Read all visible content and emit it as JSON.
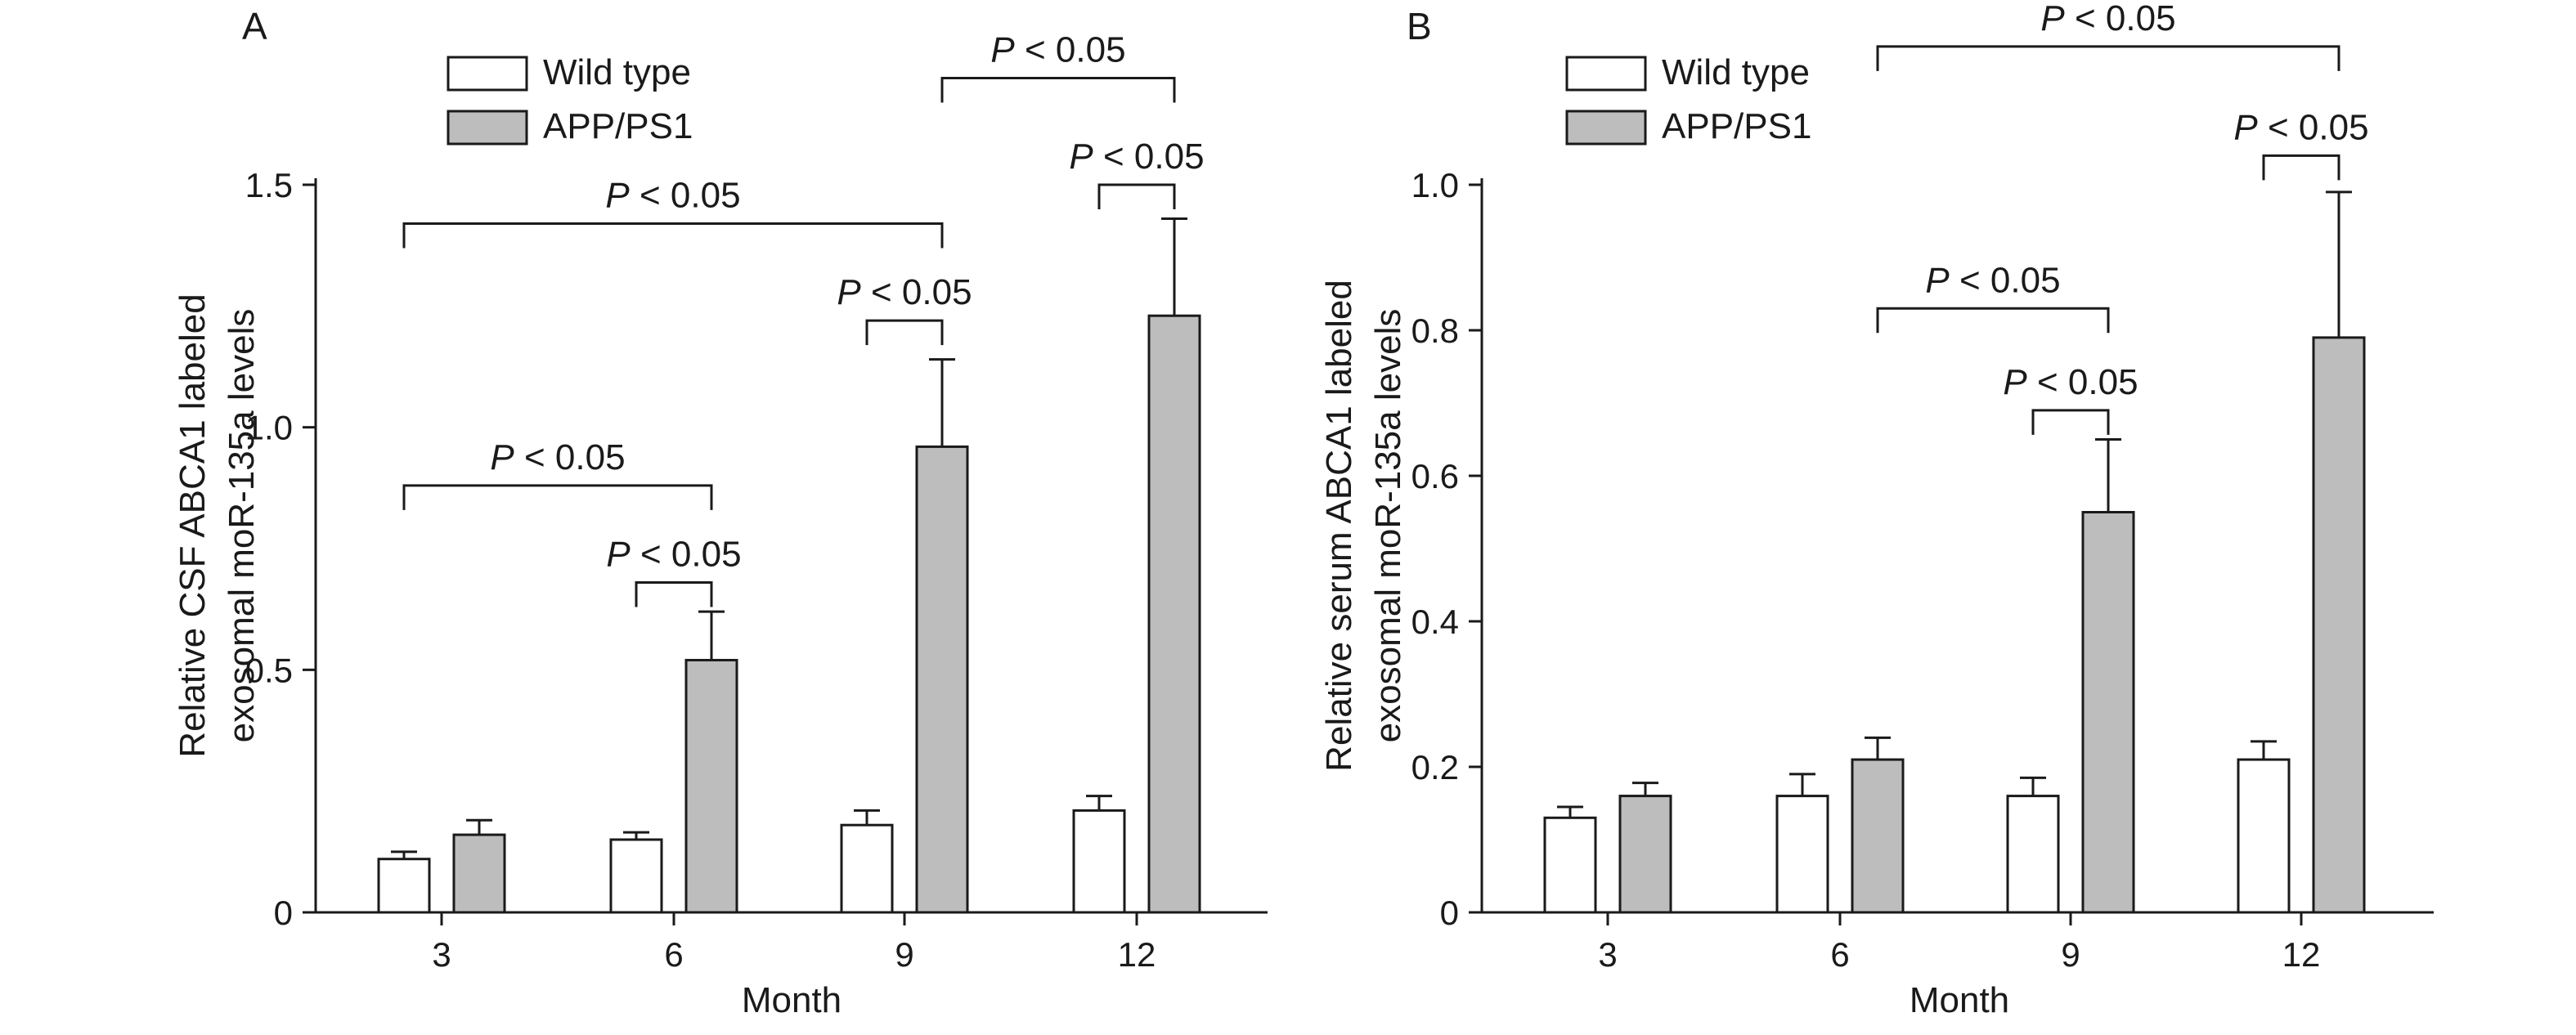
{
  "chart_data": [
    {
      "panel_label": "A",
      "type": "bar",
      "categories": [
        "3",
        "6",
        "9",
        "12"
      ],
      "xlabel": "Month",
      "ylabel_lines": [
        "Relative CSF ABCA1 labeled",
        "exosomal moR-135a levels"
      ],
      "ylim": [
        0,
        1.5
      ],
      "yticks": [
        0,
        0.5,
        1.0,
        1.5
      ],
      "ytick_labels": [
        "0",
        "0.5",
        "1.0",
        "1.5"
      ],
      "legend": {
        "placement": "top-left",
        "entries": [
          "Wild type",
          "APP/PS1"
        ]
      },
      "series": [
        {
          "name": "Wild type",
          "values": [
            0.11,
            0.15,
            0.18,
            0.21
          ],
          "errors": [
            0.015,
            0.015,
            0.03,
            0.03
          ],
          "color": "#ffffff"
        },
        {
          "name": "APP/PS1",
          "values": [
            0.16,
            0.52,
            0.96,
            1.23
          ],
          "errors": [
            0.03,
            0.1,
            0.18,
            0.2
          ],
          "color": "#bdbdbd"
        }
      ],
      "significance": [
        {
          "from": {
            "cat": 1,
            "series": 0
          },
          "to": {
            "cat": 1,
            "series": 1
          },
          "level": 0.68,
          "label_italic": "P",
          "label_rest": " < 0.05"
        },
        {
          "from": {
            "cat": 0,
            "series": 0
          },
          "to": {
            "cat": 1,
            "series": 1
          },
          "level": 0.88,
          "label_italic": "P",
          "label_rest": " < 0.05"
        },
        {
          "from": {
            "cat": 2,
            "series": 0
          },
          "to": {
            "cat": 2,
            "series": 1
          },
          "level": 1.22,
          "label_italic": "P",
          "label_rest": " < 0.05"
        },
        {
          "from": {
            "cat": 0,
            "series": 0
          },
          "to": {
            "cat": 2,
            "series": 1
          },
          "level": 1.42,
          "label_italic": "P",
          "label_rest": " < 0.05"
        },
        {
          "from": {
            "cat": 3,
            "series": 0
          },
          "to": {
            "cat": 3,
            "series": 1
          },
          "level": 1.5,
          "label_italic": "P",
          "label_rest": " < 0.05"
        },
        {
          "from": {
            "cat": 2,
            "series": 1
          },
          "to": {
            "cat": 3,
            "series": 1
          },
          "level": 1.72,
          "label_italic": "P",
          "label_rest": " < 0.05"
        }
      ]
    },
    {
      "panel_label": "B",
      "type": "bar",
      "categories": [
        "3",
        "6",
        "9",
        "12"
      ],
      "xlabel": "Month",
      "ylabel_lines": [
        "Relative serum ABCA1 labeled",
        "exosomal moR-135a levels"
      ],
      "ylim": [
        0,
        1.0
      ],
      "yticks": [
        0,
        0.2,
        0.4,
        0.6,
        0.8,
        1.0
      ],
      "ytick_labels": [
        "0",
        "0.2",
        "0.4",
        "0.6",
        "0.8",
        "1.0"
      ],
      "legend": {
        "placement": "top-left",
        "entries": [
          "Wild type",
          "APP/PS1"
        ]
      },
      "series": [
        {
          "name": "Wild type",
          "values": [
            0.13,
            0.16,
            0.16,
            0.21
          ],
          "errors": [
            0.015,
            0.03,
            0.025,
            0.025
          ],
          "color": "#ffffff"
        },
        {
          "name": "APP/PS1",
          "values": [
            0.16,
            0.21,
            0.55,
            0.79
          ],
          "errors": [
            0.018,
            0.03,
            0.1,
            0.2
          ],
          "color": "#bdbdbd"
        }
      ],
      "significance": [
        {
          "from": {
            "cat": 2,
            "series": 0
          },
          "to": {
            "cat": 2,
            "series": 1
          },
          "level": 0.69,
          "label_italic": "P",
          "label_rest": " < 0.05"
        },
        {
          "from": {
            "cat": 1,
            "series": 1
          },
          "to": {
            "cat": 2,
            "series": 1
          },
          "level": 0.83,
          "label_italic": "P",
          "label_rest": " < 0.05"
        },
        {
          "from": {
            "cat": 3,
            "series": 0
          },
          "to": {
            "cat": 3,
            "series": 1
          },
          "level": 1.04,
          "label_italic": "P",
          "label_rest": " < 0.05"
        },
        {
          "from": {
            "cat": 1,
            "series": 1
          },
          "to": {
            "cat": 3,
            "series": 1
          },
          "level": 1.19,
          "label_italic": "P",
          "label_rest": " < 0.05"
        }
      ]
    }
  ]
}
